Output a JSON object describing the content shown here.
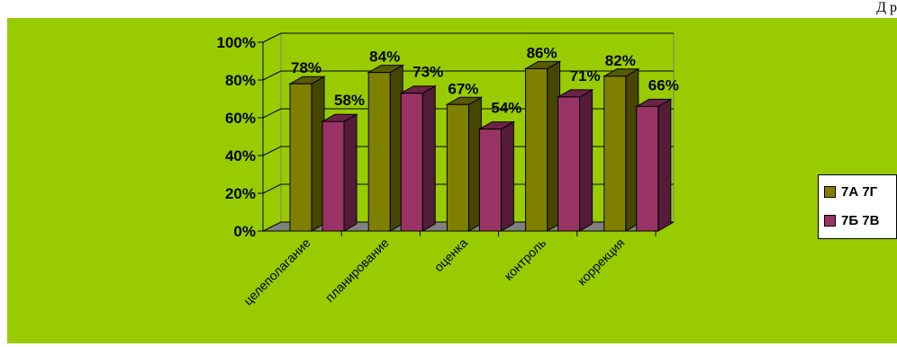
{
  "page": {
    "corner_text": "Д р"
  },
  "chart_data": {
    "type": "bar",
    "categories": [
      "целеполагание",
      "планирование",
      "оценка",
      "контроль",
      "коррекция"
    ],
    "series": [
      {
        "name": "7А 7Г",
        "values": [
          78,
          84,
          67,
          86,
          82
        ],
        "labels": [
          "78%",
          "84%",
          "67%",
          "86%",
          "82%"
        ],
        "color": "#808000"
      },
      {
        "name": "7Б 7В",
        "values": [
          58,
          73,
          54,
          71,
          66
        ],
        "labels": [
          "58%",
          "73%",
          "54%",
          "71%",
          "66%"
        ],
        "color": "#993366"
      }
    ],
    "yticks": [
      "0%",
      "20%",
      "40%",
      "60%",
      "80%",
      "100%"
    ],
    "ylim": [
      0,
      100
    ],
    "grid": true,
    "legend_position": "right",
    "background": "#99cc00"
  }
}
